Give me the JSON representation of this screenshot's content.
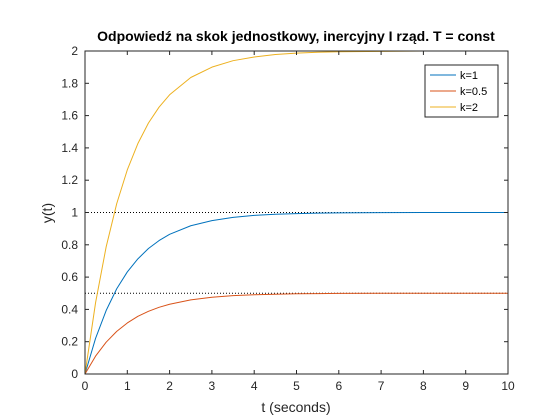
{
  "chart_data": {
    "type": "line",
    "title": "Odpowiedź na skok jednostkowy, inercyjny I rząd. T = const",
    "xlabel": "t (seconds)",
    "ylabel": "y(t)",
    "xlim": [
      0,
      10
    ],
    "ylim": [
      0,
      2
    ],
    "xticks": [
      0,
      1,
      2,
      3,
      4,
      5,
      6,
      7,
      8,
      9,
      10
    ],
    "yticks": [
      0,
      0.2,
      0.4,
      0.6,
      0.8,
      1,
      1.2,
      1.4,
      1.6,
      1.8,
      2
    ],
    "xtick_labels": [
      "0",
      "1",
      "2",
      "3",
      "4",
      "5",
      "6",
      "7",
      "8",
      "9",
      "10"
    ],
    "ytick_labels": [
      "0",
      "0.2",
      "0.4",
      "0.6",
      "0.8",
      "1",
      "1.2",
      "1.4",
      "1.6",
      "1.8",
      "2"
    ],
    "grid": false,
    "legend_position": "top-right",
    "series": [
      {
        "name": "k=1",
        "color": "#0072BD",
        "x": [
          0,
          0.25,
          0.5,
          0.75,
          1,
          1.25,
          1.5,
          1.75,
          2,
          2.5,
          3,
          3.5,
          4,
          4.5,
          5,
          5.5,
          6,
          7,
          8,
          9,
          10
        ],
        "y": [
          0,
          0.221,
          0.393,
          0.528,
          0.632,
          0.713,
          0.777,
          0.826,
          0.865,
          0.918,
          0.95,
          0.97,
          0.982,
          0.989,
          0.993,
          0.996,
          0.998,
          0.999,
          1.0,
          1.0,
          1.0
        ]
      },
      {
        "name": "k=0.5",
        "color": "#D95319",
        "x": [
          0,
          0.25,
          0.5,
          0.75,
          1,
          1.25,
          1.5,
          1.75,
          2,
          2.5,
          3,
          3.5,
          4,
          4.5,
          5,
          5.5,
          6,
          7,
          8,
          9,
          10
        ],
        "y": [
          0,
          0.111,
          0.197,
          0.264,
          0.316,
          0.357,
          0.388,
          0.413,
          0.432,
          0.459,
          0.475,
          0.485,
          0.491,
          0.494,
          0.497,
          0.498,
          0.499,
          0.5,
          0.5,
          0.5,
          0.5
        ]
      },
      {
        "name": "k=2",
        "color": "#EDB120",
        "x": [
          0,
          0.25,
          0.5,
          0.75,
          1,
          1.25,
          1.5,
          1.75,
          2,
          2.5,
          3,
          3.5,
          4,
          4.5,
          5,
          5.5,
          6,
          7,
          8,
          9,
          10
        ],
        "y": [
          0,
          0.442,
          0.787,
          1.055,
          1.264,
          1.427,
          1.554,
          1.652,
          1.729,
          1.836,
          1.9,
          1.94,
          1.963,
          1.978,
          1.987,
          1.992,
          1.995,
          1.998,
          2.0,
          2.0,
          2.0
        ]
      }
    ],
    "reference_lines": [
      {
        "y": 1,
        "color": "#000000",
        "style": "dotted"
      },
      {
        "y": 0.5,
        "color": "#000000",
        "style": "dotted"
      },
      {
        "y": 2,
        "color": "#000000",
        "style": "dotted"
      }
    ]
  }
}
